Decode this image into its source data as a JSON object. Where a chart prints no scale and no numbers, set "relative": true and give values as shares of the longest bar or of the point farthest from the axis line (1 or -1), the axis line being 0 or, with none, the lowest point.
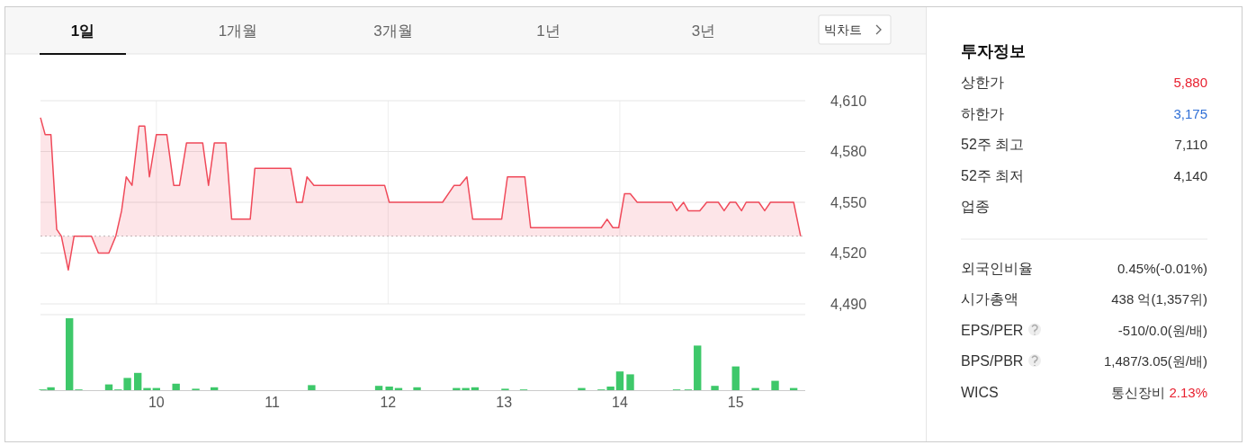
{
  "chart_data": [
    {
      "type": "area",
      "annotations": [
        "1일",
        "1개월",
        "3개월",
        "1년",
        "3년",
        "빅차트"
      ],
      "xlim": [
        9,
        15.6
      ],
      "xticks": [
        10,
        12,
        14
      ],
      "ylim": [
        4490,
        4610
      ],
      "yticks": [
        {
          "value": 4490,
          "label": "4,490"
        },
        {
          "value": 4520,
          "label": "4,520"
        },
        {
          "value": 4550,
          "label": "4,550"
        },
        {
          "value": 4580,
          "label": "4,580"
        },
        {
          "value": 4610,
          "label": "4,610"
        }
      ],
      "grid": true,
      "tick_labels": "y",
      "ref_lines": [
        {
          "axis": "y",
          "value": 4530,
          "color": "#bbbbbb",
          "line_style": "dotted"
        }
      ],
      "series": [
        {
          "color": "#f04a5a",
          "x": [
            9.0,
            9.04,
            9.09,
            9.14,
            9.18,
            9.24,
            9.29,
            9.44,
            9.5,
            9.59,
            9.65,
            9.7,
            9.74,
            9.79,
            9.85,
            9.9,
            9.94,
            10.0,
            10.09,
            10.15,
            10.2,
            10.26,
            10.4,
            10.45,
            10.5,
            10.6,
            10.65,
            10.81,
            10.85,
            11.16,
            11.21,
            11.26,
            11.3,
            11.36,
            11.97,
            12.01,
            12.47,
            12.57,
            12.62,
            12.68,
            12.73,
            12.98,
            13.03,
            13.18,
            13.23,
            13.84,
            13.89,
            13.94,
            13.99,
            14.04,
            14.09,
            14.15,
            14.45,
            14.49,
            14.55,
            14.59,
            14.69,
            14.75,
            14.85,
            14.9,
            14.95,
            15.0,
            15.05,
            15.09,
            15.2,
            15.25,
            15.3,
            15.5,
            15.56
          ],
          "values": [
            4600,
            4590,
            4590,
            4534,
            4530,
            4510,
            4530,
            4530,
            4520,
            4520,
            4530,
            4545,
            4565,
            4560,
            4595,
            4595,
            4565,
            4590,
            4590,
            4560,
            4560,
            4585,
            4585,
            4560,
            4585,
            4585,
            4540,
            4540,
            4570,
            4570,
            4550,
            4550,
            4565,
            4560,
            4560,
            4550,
            4550,
            4560,
            4560,
            4565,
            4540,
            4540,
            4565,
            4565,
            4535,
            4535,
            4540,
            4535,
            4535,
            4555,
            4555,
            4550,
            4550,
            4545,
            4550,
            4545,
            4545,
            4550,
            4550,
            4545,
            4550,
            4550,
            4545,
            4550,
            4550,
            4545,
            4550,
            4550,
            4530
          ]
        }
      ]
    },
    {
      "type": "bar",
      "relative": true,
      "xlim": [
        9,
        15.6
      ],
      "xticks": [
        10,
        11,
        12,
        13,
        14,
        15
      ],
      "series": [
        {
          "color": "#3ec86a",
          "x": [
            9.02,
            9.09,
            9.25,
            9.33,
            9.59,
            9.67,
            9.75,
            9.84,
            9.92,
            10.0,
            10.17,
            10.34,
            10.5,
            11.34,
            11.92,
            12.01,
            12.09,
            12.25,
            12.59,
            12.67,
            12.75,
            13.01,
            13.17,
            13.67,
            13.84,
            13.92,
            14.0,
            14.09,
            14.49,
            14.59,
            14.67,
            14.82,
            15.0,
            15.17,
            15.34,
            15.5
          ],
          "values": [
            0.01,
            0.04,
            1.0,
            0.01,
            0.08,
            0.01,
            0.17,
            0.24,
            0.03,
            0.03,
            0.09,
            0.02,
            0.04,
            0.07,
            0.06,
            0.05,
            0.03,
            0.04,
            0.03,
            0.03,
            0.04,
            0.02,
            0.01,
            0.03,
            0.01,
            0.05,
            0.26,
            0.22,
            0.01,
            0.01,
            0.62,
            0.06,
            0.33,
            0.03,
            0.13,
            0.03
          ]
        }
      ]
    },
    {
      "type": "other",
      "title": "투자정보",
      "categories": [
        "상한가",
        "하한가",
        "52주 최고",
        "52주 최저",
        "업종",
        "외국인비율",
        "시가총액",
        "EPS/PER",
        "BPS/PBR",
        "WICS"
      ],
      "value_labels": [
        "5,880",
        "3,175",
        "7,110",
        "4,140",
        null,
        "0.45%(-0.01%)",
        "438 억(1,357위)",
        "-510/0.0(원/배)",
        "1,487/3.05(원/배)",
        "통신장비 2.13%"
      ],
      "colors": [
        "#e8202f",
        "#2f6fd6",
        "#333333",
        "#333333",
        "#333333",
        "#333333",
        "#333333",
        "#333333",
        "#333333",
        "#e8202f"
      ]
    }
  ]
}
